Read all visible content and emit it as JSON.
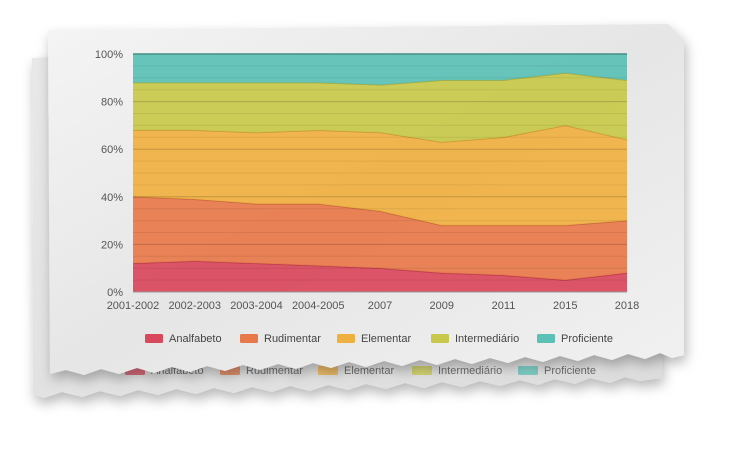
{
  "chart_data": {
    "type": "area",
    "stacking": "percent",
    "categories": [
      "2001-2002",
      "2002-2003",
      "2003-2004",
      "2004-2005",
      "2007",
      "2009",
      "2011",
      "2015",
      "2018"
    ],
    "y_ticks": [
      "0%",
      "20%",
      "40%",
      "60%",
      "80%",
      "100%"
    ],
    "ylim": [
      0,
      100
    ],
    "grid": true,
    "legend_position": "bottom",
    "series": [
      {
        "name": "Analfabeto",
        "color": "#d9475c",
        "values": [
          12,
          13,
          12,
          11,
          10,
          8,
          7,
          5,
          8
        ]
      },
      {
        "name": "Rudimentar",
        "color": "#e8784a",
        "values": [
          28,
          26,
          25,
          26,
          24,
          20,
          21,
          23,
          22
        ]
      },
      {
        "name": "Elementar",
        "color": "#f0b040",
        "values": [
          28,
          29,
          30,
          31,
          33,
          35,
          37,
          42,
          34
        ]
      },
      {
        "name": "Intermediário",
        "color": "#c8c94a",
        "values": [
          20,
          20,
          21,
          20,
          20,
          26,
          24,
          22,
          25
        ]
      },
      {
        "name": "Proficiente",
        "color": "#5bc0b5",
        "values": [
          12,
          12,
          12,
          12,
          13,
          11,
          11,
          8,
          11
        ]
      }
    ]
  },
  "duplicate_legend": [
    "Analfabeto",
    "Rudimentar",
    "Elementar",
    "Intermediário",
    "Proficiente"
  ]
}
